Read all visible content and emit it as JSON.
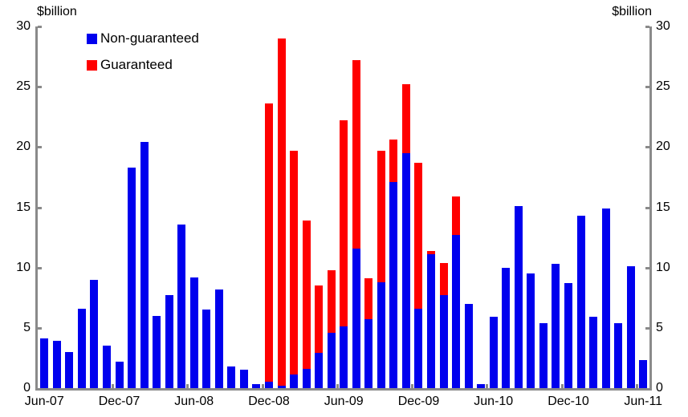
{
  "chart_data": {
    "type": "bar",
    "stacked": true,
    "grid": false,
    "unit_label_left": "$billion",
    "unit_label_right": "$billion",
    "legend": {
      "position": "top-left",
      "items": [
        {
          "label": "Non-guaranteed",
          "color": "#0000ee"
        },
        {
          "label": "Guaranteed",
          "color": "#ff0000"
        }
      ]
    },
    "categories": [
      "Jun-07",
      "Jul-07",
      "Aug-07",
      "Sep-07",
      "Oct-07",
      "Nov-07",
      "Dec-07",
      "Jan-08",
      "Feb-08",
      "Mar-08",
      "Apr-08",
      "May-08",
      "Jun-08",
      "Jul-08",
      "Aug-08",
      "Sep-08",
      "Oct-08",
      "Nov-08",
      "Dec-08",
      "Jan-09",
      "Feb-09",
      "Mar-09",
      "Apr-09",
      "May-09",
      "Jun-09",
      "Jul-09",
      "Aug-09",
      "Sep-09",
      "Oct-09",
      "Nov-09",
      "Dec-09",
      "Jan-10",
      "Feb-10",
      "Mar-10",
      "Apr-10",
      "May-10",
      "Jun-10",
      "Jul-10",
      "Aug-10",
      "Sep-10",
      "Oct-10",
      "Nov-10",
      "Dec-10",
      "Jan-11",
      "Feb-11",
      "Mar-11",
      "Apr-11",
      "May-11",
      "Jun-11"
    ],
    "series": [
      {
        "name": "Non-guaranteed",
        "color": "#0000ee",
        "values": [
          4.1,
          3.9,
          3.0,
          6.6,
          9.0,
          3.5,
          2.2,
          18.3,
          20.4,
          6.0,
          7.7,
          13.6,
          9.2,
          6.5,
          8.2,
          1.8,
          1.5,
          0.3,
          0.5,
          0.2,
          1.1,
          1.6,
          2.9,
          4.6,
          5.1,
          11.6,
          5.7,
          8.8,
          17.1,
          19.5,
          6.6,
          11.1,
          7.7,
          12.7,
          7.0,
          0.3,
          5.9,
          10.0,
          15.1,
          9.5,
          5.4,
          10.3,
          8.7,
          14.3,
          5.9,
          14.9,
          5.4,
          10.1,
          2.3
        ]
      },
      {
        "name": "Guaranteed",
        "color": "#ff0000",
        "values": [
          0,
          0,
          0,
          0,
          0,
          0,
          0,
          0,
          0,
          0,
          0,
          0,
          0,
          0,
          0,
          0,
          0,
          0,
          23.1,
          28.8,
          18.6,
          12.3,
          5.6,
          5.2,
          17.1,
          15.6,
          3.4,
          10.9,
          3.5,
          5.7,
          12.1,
          0.3,
          2.7,
          3.2,
          0,
          0,
          0,
          0,
          0,
          0,
          0,
          0,
          0,
          0,
          0,
          0,
          0,
          0,
          0
        ]
      }
    ],
    "y_axis": {
      "min": 0,
      "max": 30,
      "ticks": [
        0,
        5,
        10,
        15,
        20,
        25,
        30
      ],
      "tick_labels": [
        "0",
        "5",
        "10",
        "15",
        "20",
        "25",
        "30"
      ]
    },
    "x_axis": {
      "tick_labels": [
        "Jun-07",
        "Dec-07",
        "Jun-08",
        "Dec-08",
        "Jun-09",
        "Dec-09",
        "Jun-10",
        "Dec-10",
        "Jun-11"
      ],
      "tick_month_indices": [
        0,
        6,
        12,
        18,
        24,
        30,
        36,
        42,
        48
      ]
    }
  }
}
